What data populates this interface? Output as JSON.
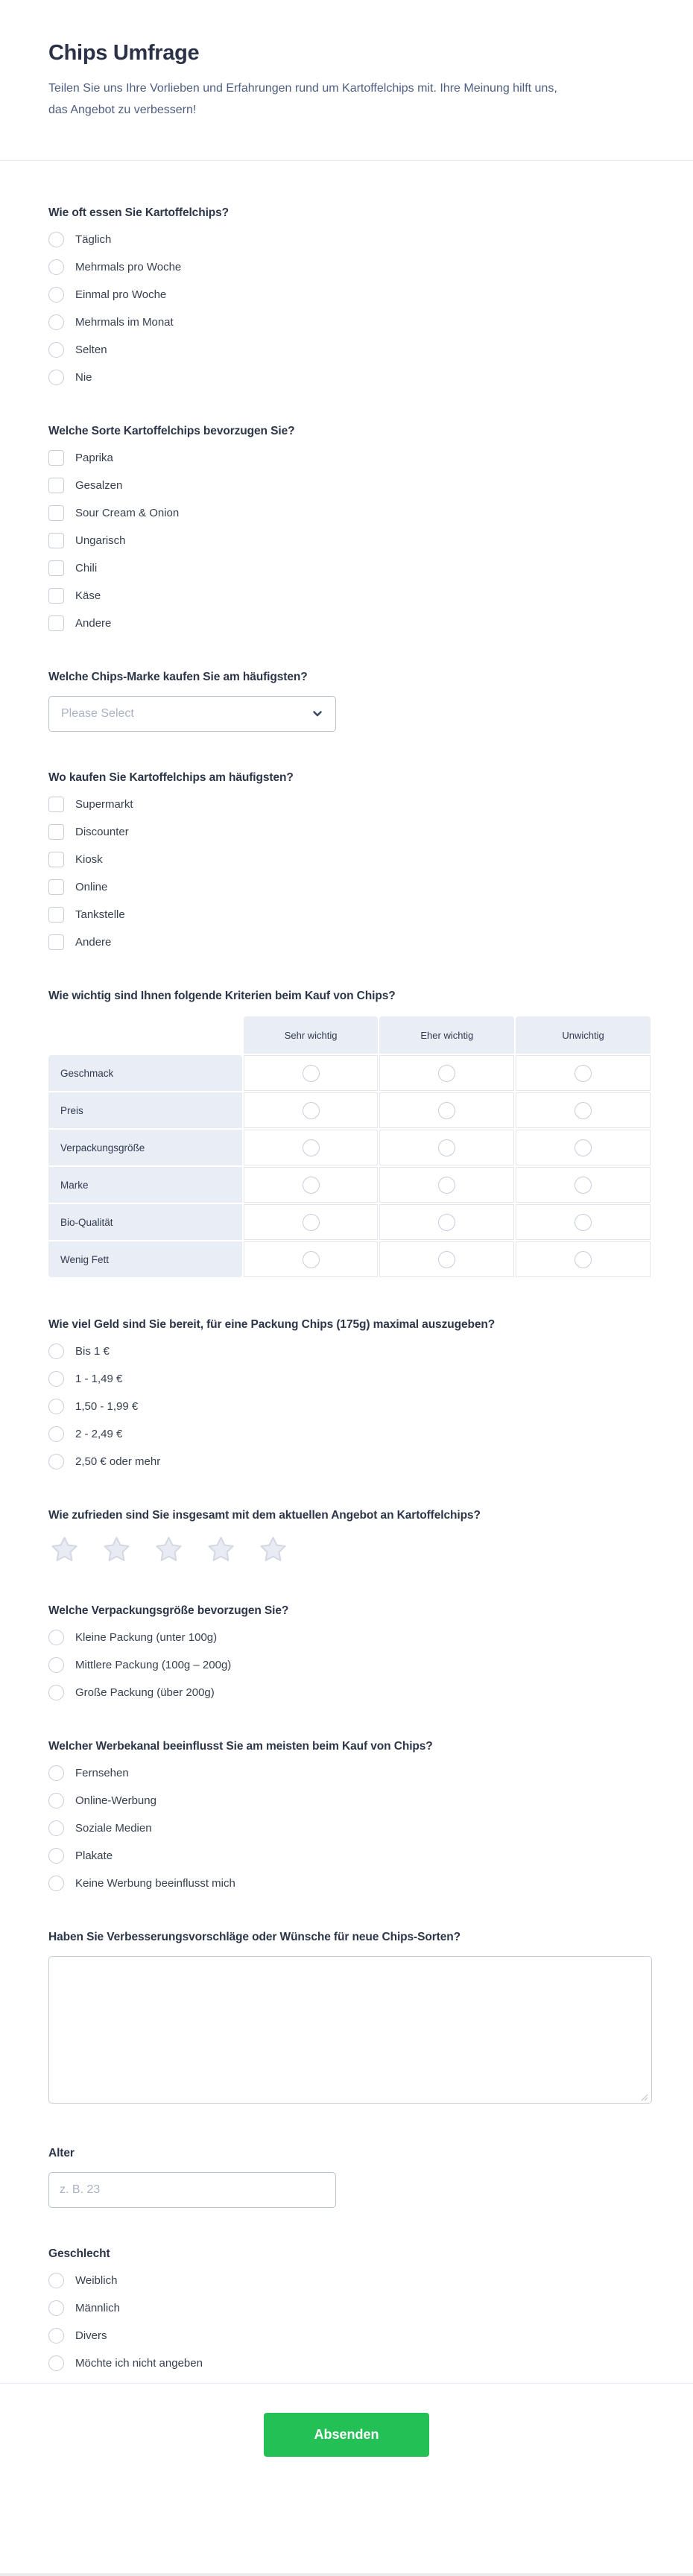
{
  "page": {
    "title": "Chips Umfrage",
    "subtitle": "Teilen Sie uns Ihre Vorlieben und Erfahrungen rund um Kartoffelchips mit. Ihre Meinung hilft uns, das Angebot zu verbessern!",
    "submit_label": "Absenden"
  },
  "colors": {
    "title_text": "#2b3247",
    "subtitle_text": "#4e5e80",
    "question_text": "#2c3648",
    "option_text": "#37404f",
    "control_border": "#c7cdd9",
    "matrix_header_bg": "#e9edf4",
    "matrix_cell_border": "#e4e7ee",
    "divider": "#e7e9f1",
    "placeholder_text": "#a9b2c4",
    "submit_green": "#22c055",
    "star_fill": "#e8ebf2",
    "star_stroke": "#d3d8e3"
  },
  "questions": [
    {
      "id": "frequency",
      "type": "radio",
      "label": "Wie oft essen Sie Kartoffelchips?",
      "options": [
        "Täglich",
        "Mehrmals pro Woche",
        "Einmal pro Woche",
        "Mehrmals im Monat",
        "Selten",
        "Nie"
      ]
    },
    {
      "id": "flavor",
      "type": "checkbox",
      "label": "Welche Sorte Kartoffelchips bevorzugen Sie?",
      "options": [
        "Paprika",
        "Gesalzen",
        "Sour Cream & Onion",
        "Ungarisch",
        "Chili",
        "Käse",
        "Andere"
      ]
    },
    {
      "id": "brand",
      "type": "select",
      "label": "Welche Chips-Marke kaufen Sie am häufigsten?",
      "placeholder": "Please Select"
    },
    {
      "id": "store",
      "type": "checkbox",
      "label": "Wo kaufen Sie Kartoffelchips am häufigsten?",
      "options": [
        "Supermarkt",
        "Discounter",
        "Kiosk",
        "Online",
        "Tankstelle",
        "Andere"
      ]
    },
    {
      "id": "criteria",
      "type": "matrix",
      "label": "Wie wichtig sind Ihnen folgende Kriterien beim Kauf von Chips?",
      "columns": [
        "Sehr wichtig",
        "Eher wichtig",
        "Unwichtig"
      ],
      "rows": [
        "Geschmack",
        "Preis",
        "Verpackungsgröße",
        "Marke",
        "Bio-Qualität",
        "Wenig Fett"
      ]
    },
    {
      "id": "price",
      "type": "radio",
      "label": "Wie viel Geld sind Sie bereit, für eine Packung Chips (175g) maximal auszugeben?",
      "options": [
        "Bis 1 €",
        "1 - 1,49 €",
        "1,50 - 1,99 €",
        "2 - 2,49 €",
        "2,50 € oder mehr"
      ]
    },
    {
      "id": "satisfaction",
      "type": "stars",
      "label": "Wie zufrieden sind Sie insgesamt mit dem aktuellen Angebot an Kartoffelchips?",
      "count": 5
    },
    {
      "id": "package_size",
      "type": "radio",
      "label": "Welche Verpackungsgröße bevorzugen Sie?",
      "options": [
        "Kleine Packung (unter 100g)",
        "Mittlere Packung (100g – 200g)",
        "Große Packung (über 200g)"
      ]
    },
    {
      "id": "ad_channel",
      "type": "radio",
      "label": "Welcher Werbekanal beeinflusst Sie am meisten beim Kauf von Chips?",
      "options": [
        "Fernsehen",
        "Online-Werbung",
        "Soziale Medien",
        "Plakate",
        "Keine Werbung beeinflusst mich"
      ]
    },
    {
      "id": "suggestions",
      "type": "textarea",
      "label": "Haben Sie Verbesserungsvorschläge oder Wünsche für neue Chips-Sorten?",
      "value": ""
    },
    {
      "id": "age",
      "type": "text",
      "label": "Alter",
      "placeholder": "z. B. 23",
      "value": ""
    },
    {
      "id": "gender",
      "type": "radio",
      "label": "Geschlecht",
      "options": [
        "Weiblich",
        "Männlich",
        "Divers",
        "Möchte ich nicht angeben"
      ]
    }
  ]
}
